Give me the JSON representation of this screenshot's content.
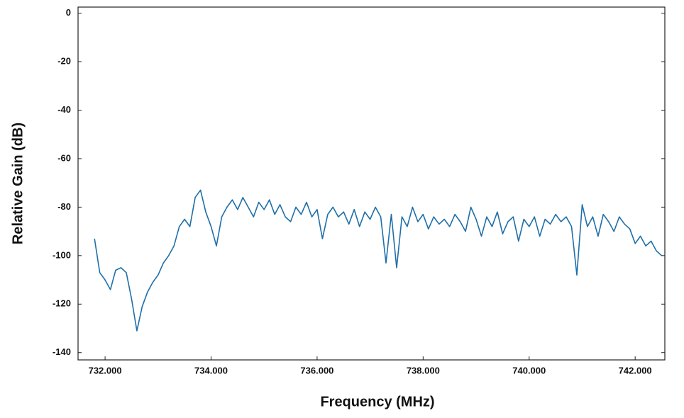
{
  "chart_data": {
    "type": "line",
    "xlabel": "Frequency (MHz)",
    "ylabel": "Relative Gain (dB)",
    "xlim": [
      731.49,
      742.56
    ],
    "ylim": [
      -143,
      2.5
    ],
    "xticks": [
      {
        "value": 732,
        "label": "732.000"
      },
      {
        "value": 734,
        "label": "734.000"
      },
      {
        "value": 736,
        "label": "736.000"
      },
      {
        "value": 738,
        "label": "738.000"
      },
      {
        "value": 740,
        "label": "740.000"
      },
      {
        "value": 742,
        "label": "742.000"
      }
    ],
    "yticks": [
      0,
      -20,
      -40,
      -60,
      -80,
      -100,
      -120,
      -140
    ],
    "x": [
      731.8,
      731.9,
      732.0,
      732.1,
      732.2,
      732.3,
      732.4,
      732.5,
      732.6,
      732.7,
      732.8,
      732.9,
      733.0,
      733.1,
      733.2,
      733.3,
      733.4,
      733.5,
      733.6,
      733.7,
      733.8,
      733.9,
      734.0,
      734.1,
      734.2,
      734.3,
      734.4,
      734.5,
      734.6,
      734.7,
      734.8,
      734.9,
      735.0,
      735.1,
      735.2,
      735.3,
      735.4,
      735.5,
      735.6,
      735.7,
      735.8,
      735.9,
      736.0,
      736.1,
      736.2,
      736.3,
      736.4,
      736.5,
      736.6,
      736.7,
      736.8,
      736.9,
      737.0,
      737.1,
      737.2,
      737.3,
      737.4,
      737.5,
      737.6,
      737.7,
      737.8,
      737.9,
      738.0,
      738.1,
      738.2,
      738.3,
      738.4,
      738.5,
      738.6,
      738.7,
      738.8,
      738.9,
      739.0,
      739.1,
      739.2,
      739.3,
      739.4,
      739.5,
      739.6,
      739.7,
      739.8,
      739.9,
      740.0,
      740.1,
      740.2,
      740.3,
      740.4,
      740.5,
      740.6,
      740.7,
      740.8,
      740.9,
      741.0,
      741.1,
      741.2,
      741.3,
      741.4,
      741.5,
      741.6,
      741.7,
      741.8,
      741.9,
      742.0,
      742.1,
      742.2,
      742.3,
      742.4,
      742.5
    ],
    "series": [
      {
        "color": "#1f6fa8",
        "values": [
          -93,
          -107,
          -110,
          -114,
          -106,
          -105,
          -107,
          -118,
          -131,
          -121,
          -115,
          -111,
          -108,
          -103,
          -100,
          -96,
          -88,
          -85,
          -88,
          -76,
          -73,
          -82,
          -88,
          -96,
          -84,
          -80,
          -77,
          -81,
          -76,
          -80,
          -84,
          -78,
          -81,
          -77,
          -83,
          -79,
          -84,
          -86,
          -80,
          -83,
          -78,
          -84,
          -81,
          -93,
          -83,
          -80,
          -84,
          -82,
          -87,
          -81,
          -88,
          -82,
          -85,
          -80,
          -84,
          -103,
          -83,
          -105,
          -84,
          -88,
          -80,
          -86,
          -83,
          -89,
          -84,
          -87,
          -85,
          -88,
          -83,
          -86,
          -90,
          -80,
          -85,
          -92,
          -84,
          -88,
          -82,
          -91,
          -86,
          -84,
          -94,
          -85,
          -88,
          -84,
          -92,
          -85,
          -87,
          -83,
          -86,
          -84,
          -88,
          -108,
          -79,
          -88,
          -84,
          -92,
          -83,
          -86,
          -90,
          -84,
          -87,
          -89,
          -95,
          -92,
          -96,
          -94,
          -98,
          -100
        ]
      }
    ]
  }
}
